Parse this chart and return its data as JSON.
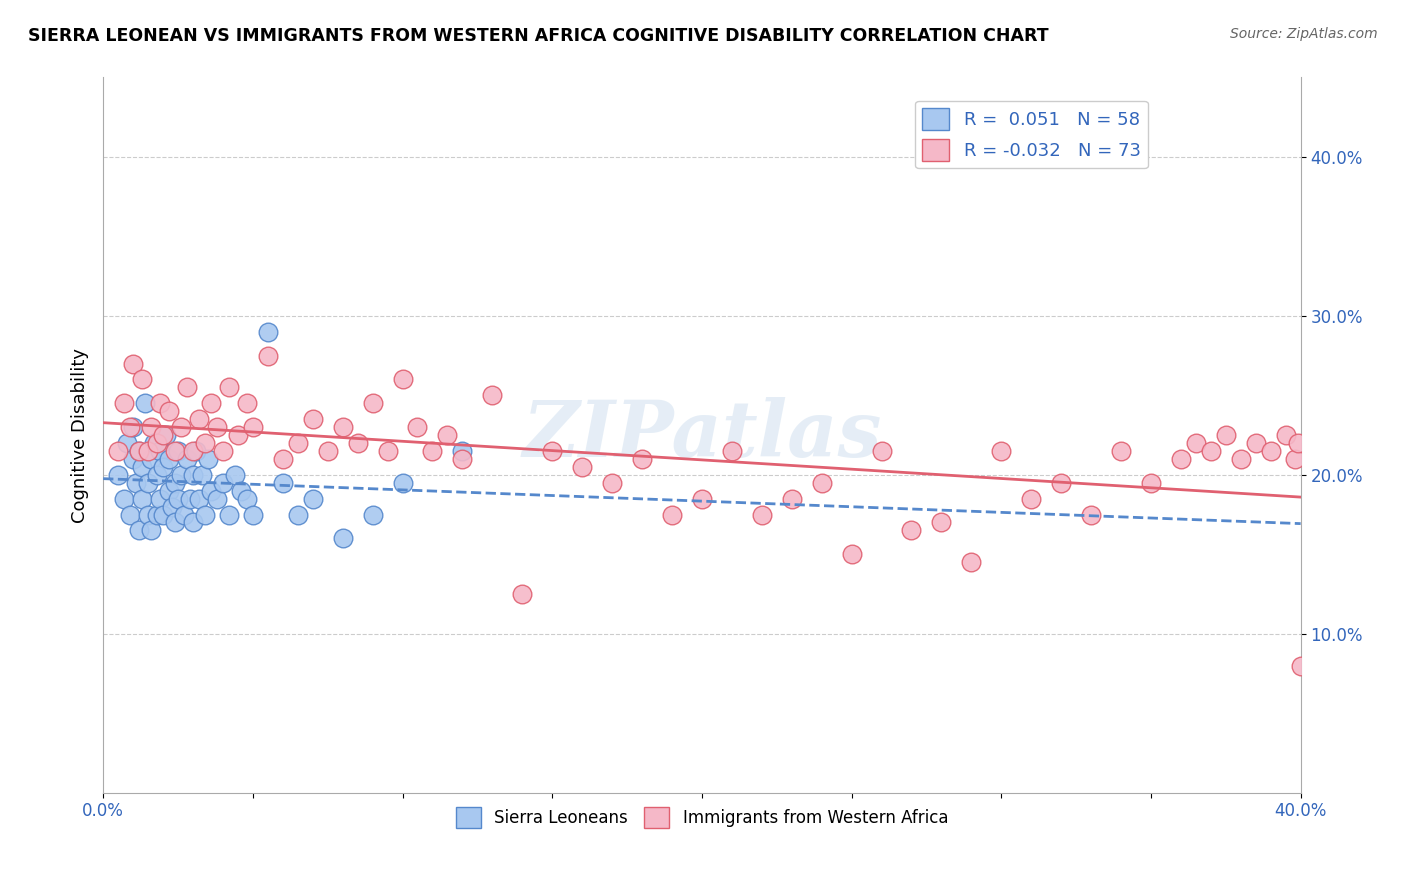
{
  "title": "SIERRA LEONEAN VS IMMIGRANTS FROM WESTERN AFRICA COGNITIVE DISABILITY CORRELATION CHART",
  "source": "Source: ZipAtlas.com",
  "ylabel": "Cognitive Disability",
  "watermark": "ZIPatlas",
  "xlim": [
    0.0,
    0.4
  ],
  "ylim": [
    0.0,
    0.45
  ],
  "xticks": [
    0.0,
    0.05,
    0.1,
    0.15,
    0.2,
    0.25,
    0.3,
    0.35,
    0.4
  ],
  "xticklabels_show": {
    "0.0": "0.0%",
    "0.40": "40.0%"
  },
  "yticks": [
    0.1,
    0.2,
    0.3,
    0.4
  ],
  "yticklabels": [
    "10.0%",
    "20.0%",
    "30.0%",
    "40.0%"
  ],
  "legend_r1": "R =  0.051",
  "legend_n1": "N = 58",
  "legend_r2": "R = -0.032",
  "legend_n2": "N = 73",
  "color_blue": "#A8C8F0",
  "color_pink": "#F5B8C8",
  "line_blue": "#5588CC",
  "line_pink": "#E06070",
  "grid_color": "#CCCCCC",
  "blue_scatter_x": [
    0.005,
    0.007,
    0.008,
    0.009,
    0.01,
    0.01,
    0.011,
    0.012,
    0.012,
    0.013,
    0.013,
    0.014,
    0.015,
    0.015,
    0.016,
    0.016,
    0.017,
    0.018,
    0.018,
    0.019,
    0.019,
    0.02,
    0.02,
    0.021,
    0.022,
    0.022,
    0.023,
    0.024,
    0.024,
    0.025,
    0.025,
    0.026,
    0.027,
    0.028,
    0.029,
    0.03,
    0.03,
    0.031,
    0.032,
    0.033,
    0.034,
    0.035,
    0.036,
    0.038,
    0.04,
    0.042,
    0.044,
    0.046,
    0.048,
    0.05,
    0.055,
    0.06,
    0.065,
    0.07,
    0.08,
    0.09,
    0.1,
    0.12
  ],
  "blue_scatter_y": [
    0.2,
    0.185,
    0.22,
    0.175,
    0.21,
    0.23,
    0.195,
    0.215,
    0.165,
    0.205,
    0.185,
    0.245,
    0.175,
    0.195,
    0.21,
    0.165,
    0.22,
    0.2,
    0.175,
    0.215,
    0.185,
    0.205,
    0.175,
    0.225,
    0.19,
    0.21,
    0.18,
    0.195,
    0.17,
    0.215,
    0.185,
    0.2,
    0.175,
    0.21,
    0.185,
    0.2,
    0.17,
    0.215,
    0.185,
    0.2,
    0.175,
    0.21,
    0.19,
    0.185,
    0.195,
    0.175,
    0.2,
    0.19,
    0.185,
    0.175,
    0.29,
    0.195,
    0.175,
    0.185,
    0.16,
    0.175,
    0.195,
    0.215
  ],
  "pink_scatter_x": [
    0.005,
    0.007,
    0.009,
    0.01,
    0.012,
    0.013,
    0.015,
    0.016,
    0.018,
    0.019,
    0.02,
    0.022,
    0.024,
    0.026,
    0.028,
    0.03,
    0.032,
    0.034,
    0.036,
    0.038,
    0.04,
    0.042,
    0.045,
    0.048,
    0.05,
    0.055,
    0.06,
    0.065,
    0.07,
    0.075,
    0.08,
    0.085,
    0.09,
    0.095,
    0.1,
    0.105,
    0.11,
    0.115,
    0.12,
    0.13,
    0.14,
    0.15,
    0.16,
    0.17,
    0.18,
    0.19,
    0.2,
    0.21,
    0.22,
    0.23,
    0.24,
    0.25,
    0.26,
    0.27,
    0.28,
    0.29,
    0.3,
    0.31,
    0.32,
    0.33,
    0.34,
    0.35,
    0.36,
    0.365,
    0.37,
    0.375,
    0.38,
    0.385,
    0.39,
    0.395,
    0.398,
    0.399,
    0.4
  ],
  "pink_scatter_y": [
    0.215,
    0.245,
    0.23,
    0.27,
    0.215,
    0.26,
    0.215,
    0.23,
    0.22,
    0.245,
    0.225,
    0.24,
    0.215,
    0.23,
    0.255,
    0.215,
    0.235,
    0.22,
    0.245,
    0.23,
    0.215,
    0.255,
    0.225,
    0.245,
    0.23,
    0.275,
    0.21,
    0.22,
    0.235,
    0.215,
    0.23,
    0.22,
    0.245,
    0.215,
    0.26,
    0.23,
    0.215,
    0.225,
    0.21,
    0.25,
    0.125,
    0.215,
    0.205,
    0.195,
    0.21,
    0.175,
    0.185,
    0.215,
    0.175,
    0.185,
    0.195,
    0.15,
    0.215,
    0.165,
    0.17,
    0.145,
    0.215,
    0.185,
    0.195,
    0.175,
    0.215,
    0.195,
    0.21,
    0.22,
    0.215,
    0.225,
    0.21,
    0.22,
    0.215,
    0.225,
    0.21,
    0.22,
    0.08
  ]
}
